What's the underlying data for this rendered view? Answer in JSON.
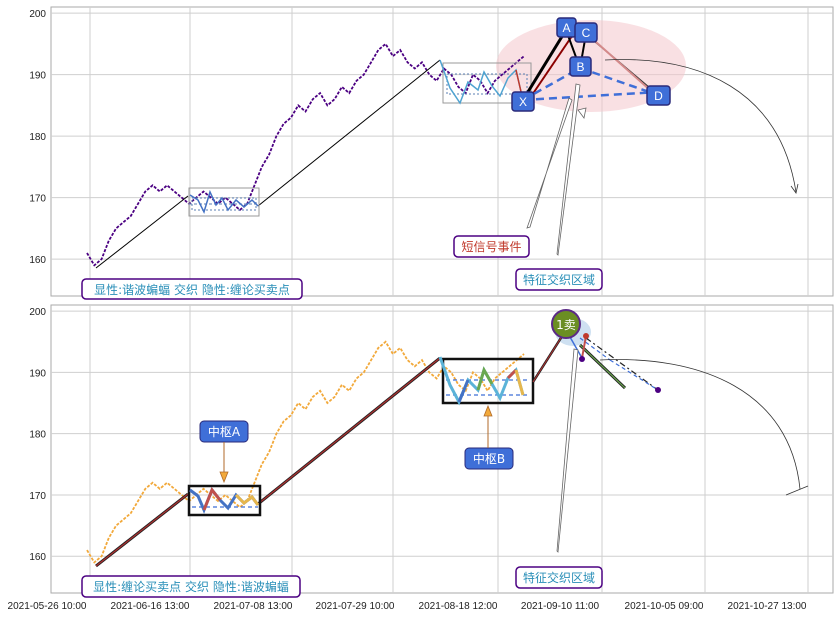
{
  "chart_data": [
    {
      "type": "line",
      "panel": "top",
      "ylim": [
        154,
        201
      ],
      "yticks": [
        160,
        170,
        180,
        190,
        200
      ],
      "grid": true,
      "series": [
        {
          "name": "",
          "color": "#4b0082",
          "x": [
            0.0,
            1.0,
            2.0,
            3.0,
            4.0,
            5.0,
            6.0,
            7.0,
            8.0,
            9.0,
            10.0,
            11.0,
            12.0,
            13.0,
            14.0,
            15.0,
            16.0,
            17.0,
            18.0,
            19.0,
            20.0,
            21.0,
            22.0,
            23.0,
            24.0,
            25.0,
            26.0,
            27.0,
            28.0,
            29.0,
            30.0,
            31.0,
            32.0,
            33.0,
            34.0,
            35.0,
            36.0,
            37.0,
            38.0,
            39.0,
            40.0,
            41.0,
            42.0,
            43.0,
            44.0,
            45.0,
            46.0,
            47.0,
            48.0,
            49.0,
            50.0,
            51.0,
            52.0,
            53.0,
            54.0,
            55.0,
            56.0,
            57.0,
            58.0,
            59.0,
            60.0
          ],
          "y": [
            161,
            159,
            160,
            163,
            165,
            166,
            167,
            169,
            171,
            172,
            171,
            172,
            171,
            170,
            169,
            170,
            171,
            170,
            169,
            170,
            169,
            168,
            169,
            172,
            175,
            177,
            180,
            182,
            183,
            185,
            184,
            186,
            187,
            185,
            186,
            188,
            187,
            189,
            190,
            192,
            194,
            195,
            193,
            194,
            192,
            191,
            192,
            190,
            189,
            191,
            190,
            188,
            187,
            190,
            189,
            187,
            189,
            190,
            191,
            192,
            193
          ]
        }
      ],
      "annotations": {
        "points": [
          {
            "name": "A",
            "label": "A",
            "y": 197
          },
          {
            "name": "B",
            "label": "B",
            "y": 191
          },
          {
            "name": "C",
            "label": "C",
            "y": 196
          },
          {
            "name": "X",
            "label": "X",
            "y": 186
          },
          {
            "name": "D",
            "label": "D",
            "y": 187
          }
        ],
        "event_label": "短信号事件",
        "zone_label": "特征交织区域",
        "caption": "显性:谐波蝙蝠 交织 隐性:缠论买卖点"
      }
    },
    {
      "type": "line",
      "panel": "bottom",
      "ylim": [
        154,
        201
      ],
      "yticks": [
        160,
        170,
        180,
        190,
        200
      ],
      "grid": true,
      "series": [
        {
          "name": "",
          "color": "#f2a93b"
        }
      ],
      "annotations": {
        "pivot_a": "中枢A",
        "pivot_b": "中枢B",
        "sell": "1卖",
        "zone_label": "特征交织区域",
        "caption": "显性:缠论买卖点 交织 隐性:谐波蝙蝠"
      }
    }
  ],
  "x_tick_labels": [
    "2021-05-26 10:00",
    "2021-06-16 13:00",
    "2021-07-08 13:00",
    "2021-07-29 10:00",
    "2021-08-18 12:00",
    "2021-09-10 11:00",
    "2021-10-05 09:00",
    "2021-10-27 13:00"
  ],
  "colors": {
    "accent_blue": "#3f6fd8",
    "box_border": "#4b0082",
    "label_text": "#2a8fb8",
    "event_text": "#c0392b",
    "badge_green": "#6b8e23",
    "zone_pink": "#f4c7cc"
  }
}
